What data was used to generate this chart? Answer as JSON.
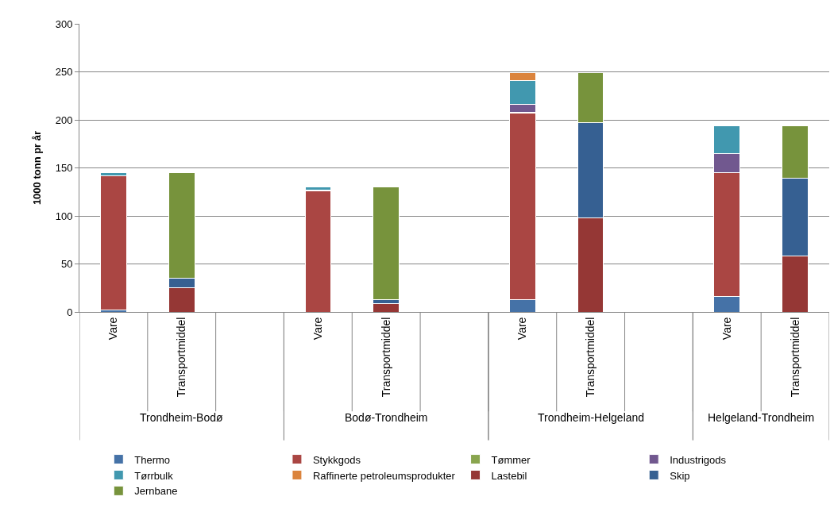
{
  "chart_data": {
    "type": "bar",
    "stacked": true,
    "ylabel": "1000 tonn pr år",
    "categories": [
      "Vare",
      "Transportmiddel",
      null,
      "Vare",
      "Transportmiddel",
      null,
      "Vare",
      "Transportmiddel",
      null,
      "Vare",
      "Transportmiddel"
    ],
    "annotations": [
      "Trondheim-Bodø",
      "Bodø-Trondheim",
      "Trondheim-Helgeland",
      "Helgeland-Trondheim"
    ],
    "series": [
      {
        "name": "Thermo",
        "color": "#4572a7",
        "values": [
          2,
          null,
          null,
          null,
          null,
          null,
          13,
          null,
          null,
          16,
          null
        ]
      },
      {
        "name": "Stykkgods",
        "color": "#aa4643",
        "values": [
          140,
          null,
          null,
          126,
          null,
          null,
          194,
          null,
          null,
          129,
          null
        ]
      },
      {
        "name": "Tømmer",
        "color": "#89a54e",
        "values": [
          null,
          null,
          null,
          null,
          null,
          null,
          1,
          null,
          null,
          null,
          null
        ]
      },
      {
        "name": "Industrigods",
        "color": "#71588f",
        "values": [
          null,
          null,
          null,
          1,
          null,
          null,
          8,
          null,
          null,
          20,
          null
        ]
      },
      {
        "name": "Tørrbulk",
        "color": "#4198af",
        "values": [
          3,
          null,
          null,
          3,
          null,
          null,
          25,
          null,
          null,
          29,
          null
        ]
      },
      {
        "name": "Raffinerte petroleumsprodukter",
        "color": "#db843d",
        "values": [
          null,
          null,
          null,
          null,
          null,
          null,
          8,
          null,
          null,
          null,
          null
        ]
      },
      {
        "name": "Lastebil",
        "color": "#953735",
        "values": [
          null,
          25,
          null,
          null,
          9,
          null,
          null,
          98,
          null,
          null,
          58
        ]
      },
      {
        "name": "Skip",
        "color": "#366092",
        "values": [
          null,
          10,
          null,
          null,
          4,
          null,
          null,
          99,
          null,
          null,
          81
        ]
      },
      {
        "name": "Jernbane",
        "color": "#77933c",
        "values": [
          null,
          110,
          null,
          null,
          117,
          null,
          null,
          52,
          null,
          null,
          55
        ]
      }
    ],
    "ylim": [
      0,
      300
    ],
    "yticks": [
      0,
      50,
      100,
      150,
      200,
      250,
      300
    ],
    "grid": "y",
    "legend": "bottom"
  }
}
